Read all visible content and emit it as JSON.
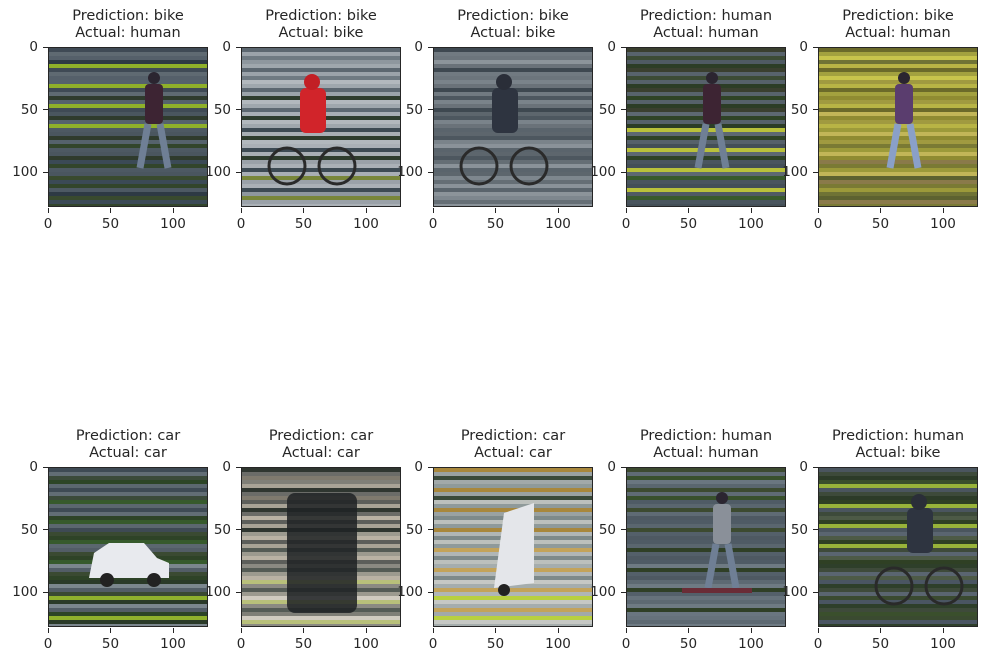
{
  "chart_data": [
    {
      "type": "image",
      "prediction": "Prediction: bike",
      "actual": "Actual: human",
      "scene": "pedestrian-thin",
      "xticks": [
        "0",
        "50",
        "100"
      ],
      "yticks": [
        "0",
        "50",
        "100"
      ],
      "xlim": [
        0,
        128
      ],
      "ylim": [
        128,
        0
      ]
    },
    {
      "type": "image",
      "prediction": "Prediction: bike",
      "actual": "Actual: bike",
      "scene": "cyclist-red",
      "xticks": [
        "0",
        "50",
        "100"
      ],
      "yticks": [
        "0",
        "50",
        "100"
      ],
      "xlim": [
        0,
        128
      ],
      "ylim": [
        128,
        0
      ]
    },
    {
      "type": "image",
      "prediction": "Prediction: bike",
      "actual": "Actual: bike",
      "scene": "cyclist-grey",
      "xticks": [
        "0",
        "50",
        "100"
      ],
      "yticks": [
        "0",
        "50",
        "100"
      ],
      "xlim": [
        0,
        128
      ],
      "ylim": [
        128,
        0
      ]
    },
    {
      "type": "image",
      "prediction": "Prediction: human",
      "actual": "Actual: human",
      "scene": "pedestrian-walking",
      "xticks": [
        "0",
        "50",
        "100"
      ],
      "yticks": [
        "0",
        "50",
        "100"
      ],
      "xlim": [
        0,
        128
      ],
      "ylim": [
        128,
        0
      ]
    },
    {
      "type": "image",
      "prediction": "Prediction: bike",
      "actual": "Actual: human",
      "scene": "pedestrian-yellow",
      "xticks": [
        "0",
        "50",
        "100"
      ],
      "yticks": [
        "0",
        "50",
        "100"
      ],
      "xlim": [
        0,
        128
      ],
      "ylim": [
        128,
        0
      ]
    },
    {
      "type": "image",
      "prediction": "Prediction: car",
      "actual": "Actual: car",
      "scene": "car-small",
      "xticks": [
        "0",
        "50",
        "100"
      ],
      "yticks": [
        "0",
        "50",
        "100"
      ],
      "xlim": [
        0,
        128
      ],
      "ylim": [
        128,
        0
      ]
    },
    {
      "type": "image",
      "prediction": "Prediction: car",
      "actual": "Actual: car",
      "scene": "car-blurred",
      "xticks": [
        "0",
        "50",
        "100"
      ],
      "yticks": [
        "0",
        "50",
        "100"
      ],
      "xlim": [
        0,
        128
      ],
      "ylim": [
        128,
        0
      ]
    },
    {
      "type": "image",
      "prediction": "Prediction: car",
      "actual": "Actual: car",
      "scene": "car-road",
      "xticks": [
        "0",
        "50",
        "100"
      ],
      "yticks": [
        "0",
        "50",
        "100"
      ],
      "xlim": [
        0,
        128
      ],
      "ylim": [
        128,
        0
      ]
    },
    {
      "type": "image",
      "prediction": "Prediction: human",
      "actual": "Actual: human",
      "scene": "pedestrian-scooter",
      "xticks": [
        "0",
        "50",
        "100"
      ],
      "yticks": [
        "0",
        "50",
        "100"
      ],
      "xlim": [
        0,
        128
      ],
      "ylim": [
        128,
        0
      ]
    },
    {
      "type": "image",
      "prediction": "Prediction: human",
      "actual": "Actual: bike",
      "scene": "cyclist-dark",
      "xticks": [
        "0",
        "50",
        "100"
      ],
      "yticks": [
        "0",
        "50",
        "100"
      ],
      "xlim": [
        0,
        128
      ],
      "ylim": [
        128,
        0
      ]
    }
  ]
}
